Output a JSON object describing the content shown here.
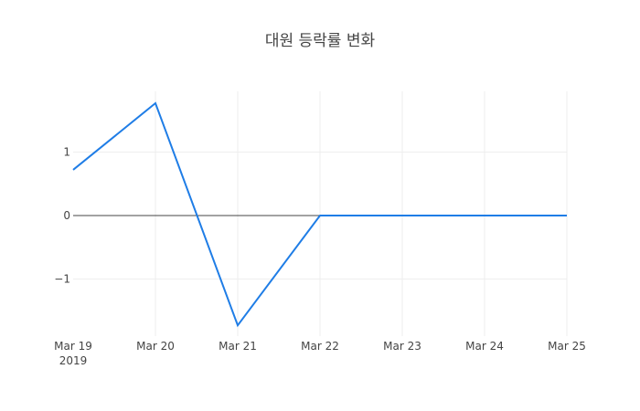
{
  "chart_data": {
    "type": "line",
    "title": "대원 등락률 변화",
    "xlabel": "",
    "ylabel": "",
    "x": [
      "Mar 19\n2019",
      "Mar 20",
      "Mar 21",
      "Mar 22",
      "Mar 23",
      "Mar 24",
      "Mar 25"
    ],
    "x_dates": [
      "2019-03-19",
      "2019-03-20",
      "2019-03-21",
      "2019-03-22",
      "2019-03-23",
      "2019-03-24",
      "2019-03-25"
    ],
    "series": [
      {
        "name": "등락률",
        "values": [
          0.72,
          1.77,
          -1.73,
          0,
          0,
          0,
          0
        ],
        "color": "#1f7de6"
      }
    ],
    "yticks": [
      1,
      0,
      -1
    ],
    "ytick_labels": [
      "1",
      "0",
      "−1"
    ],
    "ylim": [
      -1.9,
      1.95
    ],
    "grid": true,
    "zero_line": true,
    "legend": "none"
  },
  "colors": {
    "line": "#1f7de6",
    "grid": "#eeeeee",
    "zero_line": "#444444",
    "text": "#444444"
  },
  "xaxis": {
    "ticks": [
      "Mar 19",
      "Mar 20",
      "Mar 21",
      "Mar 22",
      "Mar 23",
      "Mar 24",
      "Mar 25"
    ],
    "year_label": "2019"
  }
}
